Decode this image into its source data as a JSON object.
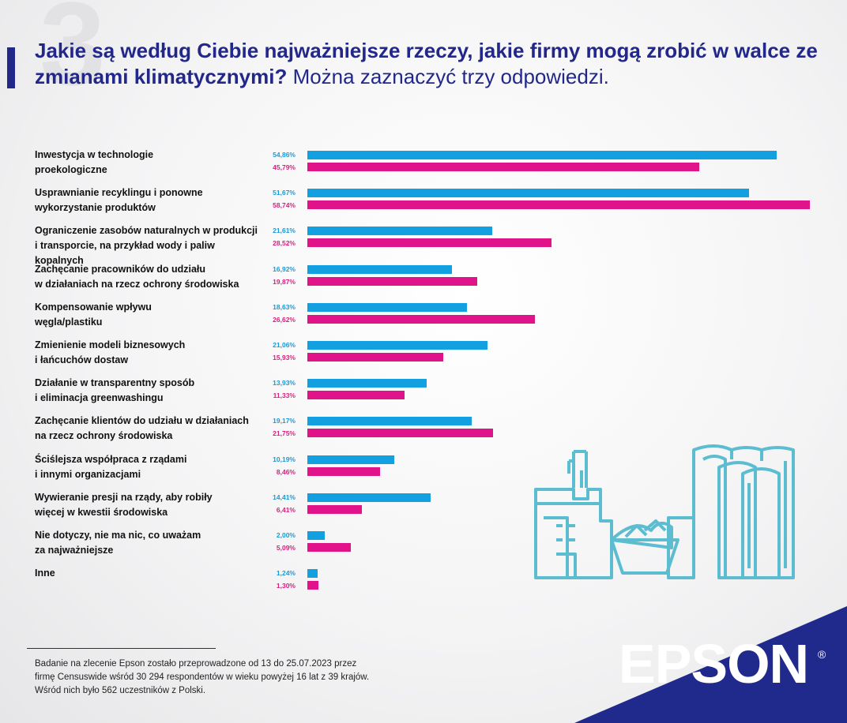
{
  "background_number": "3",
  "title": {
    "main": "Jakie są według Ciebie najważniejsze rzeczy, jakie firmy mogą zrobić w walce ze zmianami klimatycznymi?",
    "sub": " Można zaznaczyć trzy odpowiedzi."
  },
  "colors": {
    "series_a": "#13a0e0",
    "series_b": "#e0138a",
    "brand": "#22278a"
  },
  "chart_data": {
    "type": "bar",
    "orientation": "horizontal",
    "title": "Jakie są według Ciebie najważniejsze rzeczy, jakie firmy mogą zrobić w walce ze zmianami klimatycznymi? Można zaznaczyć trzy odpowiedzi.",
    "categories": [
      "Inwestycja w technologie proekologiczne",
      "Usprawnianie recyklingu i ponowne wykorzystanie produktów",
      "Ograniczenie zasobów naturalnych w produkcji i transporcie, na przykład wody i paliw kopalnych",
      "Zachęcanie pracowników do udziału w działaniach na rzecz ochrony środowiska",
      "Kompensowanie wpływu węgla/plastiku",
      "Zmienienie modeli biznesowych i łańcuchów dostaw",
      "Działanie w transparentny sposób i eliminacja greenwashingu",
      "Zachęcanie klientów do udziału w działaniach na rzecz ochrony środowiska",
      "Ściślejsza współpraca z rządami i innymi organizacjami",
      "Wywieranie presji na rządy, aby robiły więcej w kwestii środowiska",
      "Nie dotyczy, nie ma nic, co uważam za najważniejsze",
      "Inne"
    ],
    "label_lines": [
      [
        "Inwestycja w technologie",
        "proekologiczne"
      ],
      [
        "Usprawnianie recyklingu i ponowne",
        "wykorzystanie produktów"
      ],
      [
        "Ograniczenie zasobów naturalnych w produkcji",
        "i transporcie, na przykład wody i paliw kopalnych"
      ],
      [
        "Zachęcanie pracowników do udziału",
        "w działaniach na rzecz ochrony środowiska"
      ],
      [
        "Kompensowanie wpływu",
        "węgla/plastiku"
      ],
      [
        "Zmienienie modeli biznesowych",
        "i łańcuchów dostaw"
      ],
      [
        "Działanie w transparentny sposób",
        "i eliminacja greenwashingu"
      ],
      [
        "Zachęcanie klientów do udziału w działaniach",
        "na rzecz ochrony środowiska"
      ],
      [
        "Ściślejsza współpraca z rządami",
        "i innymi organizacjami"
      ],
      [
        "Wywieranie presji na rządy, aby robiły",
        "więcej w kwestii środowiska"
      ],
      [
        "Nie dotyczy, nie ma nic, co uważam",
        "za najważniejsze"
      ],
      [
        "Inne"
      ]
    ],
    "series": [
      {
        "values": [
          54.86,
          51.67,
          21.61,
          16.92,
          18.63,
          21.06,
          13.93,
          19.17,
          10.19,
          14.41,
          2.0,
          1.24
        ],
        "labels": [
          "54,86%",
          "51,67%",
          "21,61%",
          "16,92%",
          "18,63%",
          "21,06%",
          "13,93%",
          "19,17%",
          "10,19%",
          "14,41%",
          "2,00%",
          "1,24%"
        ]
      },
      {
        "values": [
          45.79,
          58.74,
          28.52,
          19.87,
          26.62,
          15.93,
          11.33,
          21.75,
          8.46,
          6.41,
          5.09,
          1.3
        ],
        "labels": [
          "45,79%",
          "58,74%",
          "28,52%",
          "19,87%",
          "26,62%",
          "15,93%",
          "11,33%",
          "21,75%",
          "8,46%",
          "6,41%",
          "5,09%",
          "1,30%"
        ]
      }
    ],
    "xlim": [
      0,
      58.74
    ],
    "xlabel": "",
    "ylabel": "",
    "grid": false
  },
  "footer": {
    "lines": [
      "Badanie na zlecenie Epson zostało przeprowadzone od 13 do 25.07.2023 przez",
      "firmę Censuswide wśród 30 294 respondentów w wieku powyżej 16 lat z 39 krajów.",
      "Wśród nich było 562 uczestników z Polski."
    ]
  },
  "brand": {
    "logo_text": "EPSON",
    "registered_mark": "®"
  }
}
